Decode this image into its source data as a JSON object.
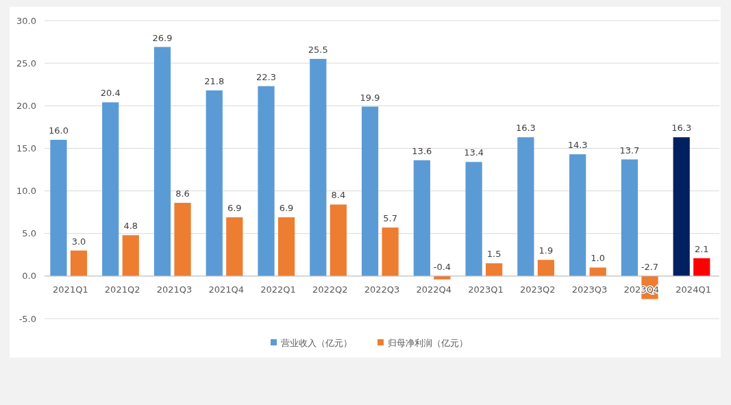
{
  "chart_data": {
    "type": "bar",
    "categories": [
      "2021Q1",
      "2021Q2",
      "2021Q3",
      "2021Q4",
      "2022Q1",
      "2022Q2",
      "2022Q3",
      "2022Q4",
      "2023Q1",
      "2023Q2",
      "2023Q3",
      "2023Q4",
      "2024Q1"
    ],
    "series": [
      {
        "name": "营业收入（亿元）",
        "color": "#5b9bd5",
        "colors": [
          "#5b9bd5",
          "#5b9bd5",
          "#5b9bd5",
          "#5b9bd5",
          "#5b9bd5",
          "#5b9bd5",
          "#5b9bd5",
          "#5b9bd5",
          "#5b9bd5",
          "#5b9bd5",
          "#5b9bd5",
          "#5b9bd5",
          "#002060"
        ],
        "values": [
          16.0,
          20.4,
          26.9,
          21.8,
          22.3,
          25.5,
          19.9,
          13.6,
          13.4,
          16.3,
          14.3,
          13.7,
          16.3
        ],
        "value_labels": [
          "16.0",
          "20.4",
          "26.9",
          "21.8",
          "22.3",
          "25.5",
          "19.9",
          "13.6",
          "13.4",
          "16.3",
          "14.3",
          "13.7",
          "16.3"
        ]
      },
      {
        "name": "归母净利润（亿元）",
        "color": "#ed7d31",
        "colors": [
          "#ed7d31",
          "#ed7d31",
          "#ed7d31",
          "#ed7d31",
          "#ed7d31",
          "#ed7d31",
          "#ed7d31",
          "#ed7d31",
          "#ed7d31",
          "#ed7d31",
          "#ed7d31",
          "#ed7d31",
          "#ff0000"
        ],
        "values": [
          3.0,
          4.8,
          8.6,
          6.9,
          6.9,
          8.4,
          5.7,
          -0.4,
          1.5,
          1.9,
          1.0,
          -2.7,
          2.1
        ],
        "value_labels": [
          "3.0",
          "4.8",
          "8.6",
          "6.9",
          "6.9",
          "8.4",
          "5.7",
          "-0.4",
          "1.5",
          "1.9",
          "1.0",
          "-2.7",
          "2.1"
        ]
      }
    ],
    "ylim": [
      -5,
      30
    ],
    "yticks": [
      {
        "value": -5,
        "label": "-5.0"
      },
      {
        "value": 0,
        "label": "0.0"
      },
      {
        "value": 5,
        "label": "5.0"
      },
      {
        "value": 10,
        "label": "10.0"
      },
      {
        "value": 15,
        "label": "15.0"
      },
      {
        "value": 20,
        "label": "20.0"
      },
      {
        "value": 25,
        "label": "25.0"
      },
      {
        "value": 30,
        "label": "30.0"
      }
    ],
    "grid": "y",
    "legend": "bottom"
  }
}
